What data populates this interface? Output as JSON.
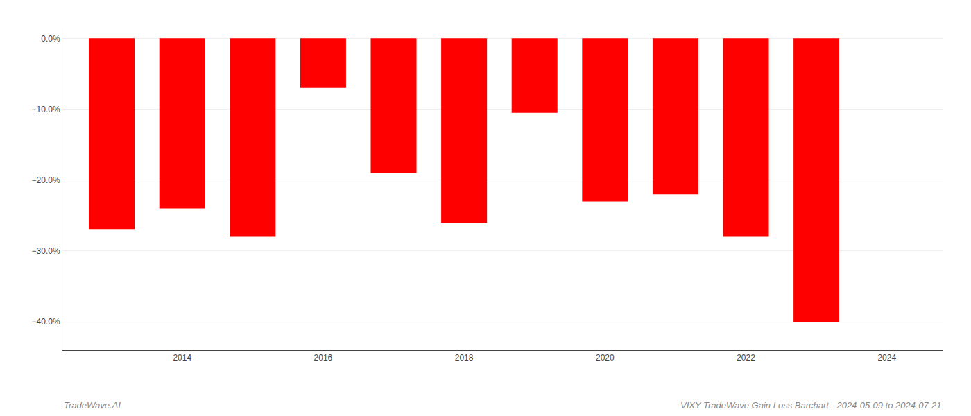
{
  "chart_data": {
    "type": "bar",
    "x": [
      2013,
      2014,
      2015,
      2016,
      2017,
      2018,
      2019,
      2020,
      2021,
      2022,
      2023
    ],
    "values": [
      -0.27,
      -0.24,
      -0.28,
      -0.07,
      -0.19,
      -0.26,
      -0.105,
      -0.23,
      -0.22,
      -0.28,
      -0.4
    ],
    "color": "#ff0000",
    "xlim": [
      2012.3,
      2024.8
    ],
    "xticks": [
      2014,
      2016,
      2018,
      2020,
      2022,
      2024
    ],
    "ylim": [
      -0.44,
      0.015
    ],
    "yticks": [
      {
        "value": 0.0,
        "label": "0.0%"
      },
      {
        "value": -0.1,
        "label": "−10.0%"
      },
      {
        "value": -0.2,
        "label": "−20.0%"
      },
      {
        "value": -0.3,
        "label": "−30.0%"
      },
      {
        "value": -0.4,
        "label": "−40.0%"
      }
    ],
    "grid": "y",
    "annotations": [
      "TradeWave.AI",
      "VIXY TradeWave Gain Loss Barchart - 2024-05-09 to 2024-07-21"
    ]
  }
}
